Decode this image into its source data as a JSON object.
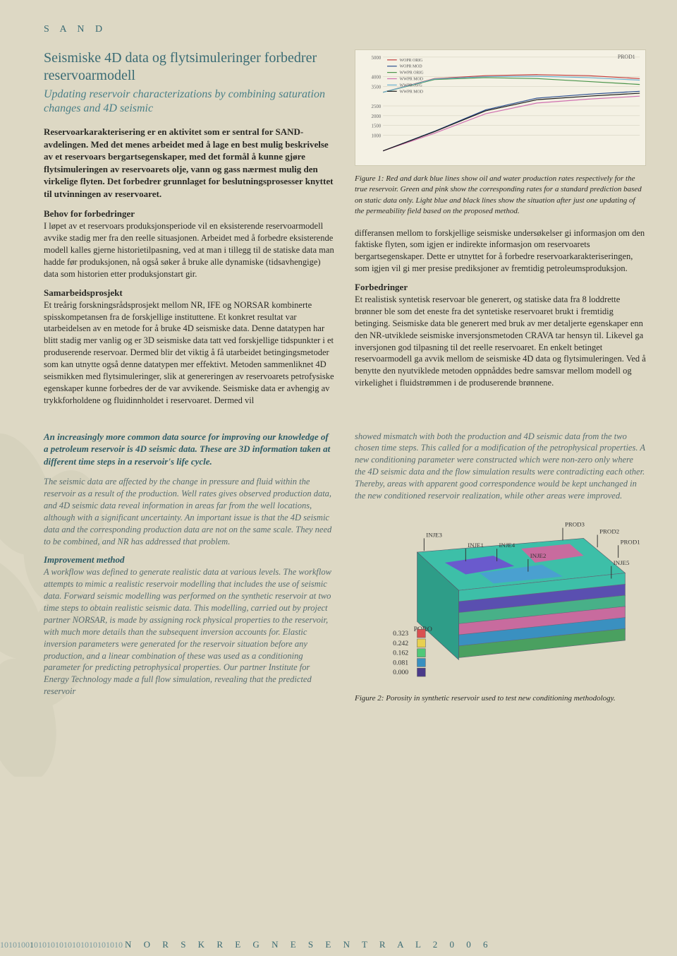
{
  "section_label": "S A N D",
  "title_no": "Seismiske 4D data og flytsimuleringer forbedrer reservoarmodell",
  "title_en": "Updating reservoir characterizations by combining saturation changes and 4D seismic",
  "lead": "Reservoarkarakterisering er en aktivitet som er sentral for SAND-avdelingen. Med det menes arbeidet med å lage en best mulig beskrivelse av et reservoars bergartsegenskaper, med det formål å kunne gjøre flytsimuleringen av reservoarets olje, vann og gass nærmest mulig den virkelige flyten. Det forbedrer grunnlaget for beslutningsprosesser knyttet til utvinningen av reservoaret.",
  "h_behov": "Behov for forbedringer",
  "p_behov": "I løpet av et reservoars produksjonsperiode vil en eksisterende reservoarmodell avvike stadig mer fra den reelle situasjonen. Arbeidet med å forbedre eksisterende modell kalles gjerne historietilpasning, ved at man i tillegg til de statiske data man hadde før produksjonen, nå også søker å bruke alle dynamiske (tidsavhengige) data som historien etter produksjonstart gir.",
  "h_sam": "Samarbeidsprosjekt",
  "p_sam": "Et treårig forskningsrådsprosjekt mellom NR, IFE og NORSAR kombinerte spisskompetansen fra de forskjellige instituttene. Et konkret resultat var utarbeidelsen av en metode for å bruke 4D seismiske data. Denne datatypen har blitt stadig mer vanlig og er 3D seismiske data tatt ved forskjellige tidspunkter i et produserende reservoar. Dermed blir det viktig å få utarbeidet betingingsmetoder som kan utnytte også denne datatypen mer effektivt. Metoden sammenliknet 4D seismikken med flytsimuleringer, slik at genereringen av reservoarets petrofysiske egenskaper kunne forbedres der de var avvikende. Seismiske data er avhengig av trykkforholdene og fluidinnholdet i reservoaret. Dermed vil",
  "fig1_caption": "Figure 1: Red and dark blue lines show oil and water production rates respectively for the true reservoir. Green and pink show the corresponding rates for a standard prediction based on static data only. Light blue and black lines show the situation after just one updating of the permeability field based on the proposed method.",
  "p_r1": "differansen mellom to forskjellige seismiske undersøkelser gi informasjon om den faktiske flyten, som igjen er indirekte informasjon om reservoarets bergartsegenskaper. Dette er utnyttet for å forbedre reservoarkarakteriseringen, som igjen vil gi mer presise prediksjoner av fremtidig petroleumsproduksjon.",
  "h_forb": "Forbedringer",
  "p_forb": "Et realistisk syntetisk reservoar ble generert, og statiske data fra 8 loddrette brønner ble som det eneste fra det syntetiske reservoaret brukt i fremtidig betinging. Seismiske data ble generert med bruk av mer detaljerte egenskaper enn den NR-utviklede seismiske inversjonsmetoden CRAVA tar hensyn til. Likevel ga inversjonen god tilpasning til det reelle reservoaret. En enkelt betinget reservoarmodell ga avvik mellom de seismiske 4D data og flytsimuleringen. Ved å benytte den nyutviklede metoden oppnåddes bedre samsvar mellom modell og virkelighet i fluidstrømmen i de produserende brønnene.",
  "en_lead": "An increasingly more common data source for improving our knowledge of a petroleum reservoir is 4D seismic data. These are 3D information taken at different time steps in a reservoir's life cycle.",
  "en_p1": "The seismic data are affected by the change in pressure and fluid within the reservoir as a result of the production. Well rates gives observed production data, and 4D seismic data reveal information in areas far from the well locations, although with a significant uncertainty. An important issue is that the 4D seismic data and the corresponding production data are not on the same scale. They need to be combined, and NR has addressed that problem.",
  "en_h_imp": "Improvement method",
  "en_p_imp": "A workflow was defined to generate realistic data at various levels. The workflow attempts to mimic a realistic reservoir modelling that includes the use of seismic data. Forward seismic modelling was performed on the synthetic reservoir at two time steps to obtain realistic seismic data. This modelling, carried out by project partner NORSAR, is made by assigning rock physical properties to the reservoir, with much more details than the subsequent inversion accounts for. Elastic inversion parameters were generated for the reservoir situation before any production, and a linear combination of these was used as a conditioning parameter for predicting petrophysical properties. Our partner Institute for Energy Technology made a full flow simulation, revealing that the predicted reservoir",
  "en_p_r1": "showed mismatch with both the production and 4D seismic data from the two chosen time steps. This called for a modification of the petrophysical properties. A new conditioning parameter were constructed which were non-zero only where the 4D seismic data and the flow simulation results were contradicting each other. Thereby, areas with apparent good correspondence would be kept unchanged in the new conditioned reservoir realization, while other areas were improved.",
  "fig2_caption": "Figure 2: Porosity in synthetic reservoir used to test new conditioning methodology.",
  "chart": {
    "series": [
      {
        "color": "#c23a3a",
        "points": [
          [
            0,
            3200
          ],
          [
            800,
            3900
          ],
          [
            1600,
            4050
          ],
          [
            2400,
            4100
          ],
          [
            3200,
            4050
          ],
          [
            4000,
            3900
          ]
        ]
      },
      {
        "color": "#2a4d8f",
        "points": [
          [
            0,
            200
          ],
          [
            800,
            1200
          ],
          [
            1600,
            2300
          ],
          [
            2400,
            2900
          ],
          [
            3200,
            3100
          ],
          [
            4000,
            3250
          ]
        ]
      },
      {
        "color": "#4a944a",
        "points": [
          [
            0,
            3200
          ],
          [
            800,
            3850
          ],
          [
            1600,
            3950
          ],
          [
            2400,
            3900
          ],
          [
            3200,
            3750
          ],
          [
            4000,
            3600
          ]
        ]
      },
      {
        "color": "#d070b0",
        "points": [
          [
            0,
            200
          ],
          [
            800,
            1100
          ],
          [
            1600,
            2100
          ],
          [
            2400,
            2650
          ],
          [
            3200,
            2850
          ],
          [
            4000,
            3000
          ]
        ]
      },
      {
        "color": "#6ab0d0",
        "points": [
          [
            0,
            3200
          ],
          [
            800,
            3880
          ],
          [
            1600,
            4000
          ],
          [
            2400,
            4020
          ],
          [
            3200,
            3950
          ],
          [
            4000,
            3820
          ]
        ]
      },
      {
        "color": "#1a1a1a",
        "points": [
          [
            0,
            200
          ],
          [
            800,
            1180
          ],
          [
            1600,
            2250
          ],
          [
            2400,
            2820
          ],
          [
            3200,
            3000
          ],
          [
            4000,
            3150
          ]
        ]
      }
    ],
    "yrange": [
      0,
      5000
    ],
    "xrange": [
      0,
      4000
    ],
    "yticks": [
      1000,
      1500,
      2000,
      2500,
      3500,
      4000,
      5000
    ],
    "legend": [
      "WOPR ORIG",
      "WOPR MOD",
      "WWPR ORIG",
      "WWPR MOD",
      "WWPR-AVG",
      "WWPR MOD"
    ],
    "well_label": "PROD1"
  },
  "fig2": {
    "wells": [
      "INJE3",
      "INJE1",
      "INJE4",
      "INJE2",
      "PROD3",
      "PROD2",
      "PROD1",
      "INJE5"
    ],
    "poro_label": "PORO",
    "poro_vals": [
      "0.323",
      "0.242",
      "0.162",
      "0.081",
      "0.000"
    ],
    "poro_colors": [
      "#d95050",
      "#e8d050",
      "#50c878",
      "#3890c0",
      "#4a3a8a"
    ]
  },
  "footer": {
    "bits": "10101001010101010101010101010",
    "org": "N O R S K   R E G N E S E N T R A L   2 0 0 6"
  }
}
